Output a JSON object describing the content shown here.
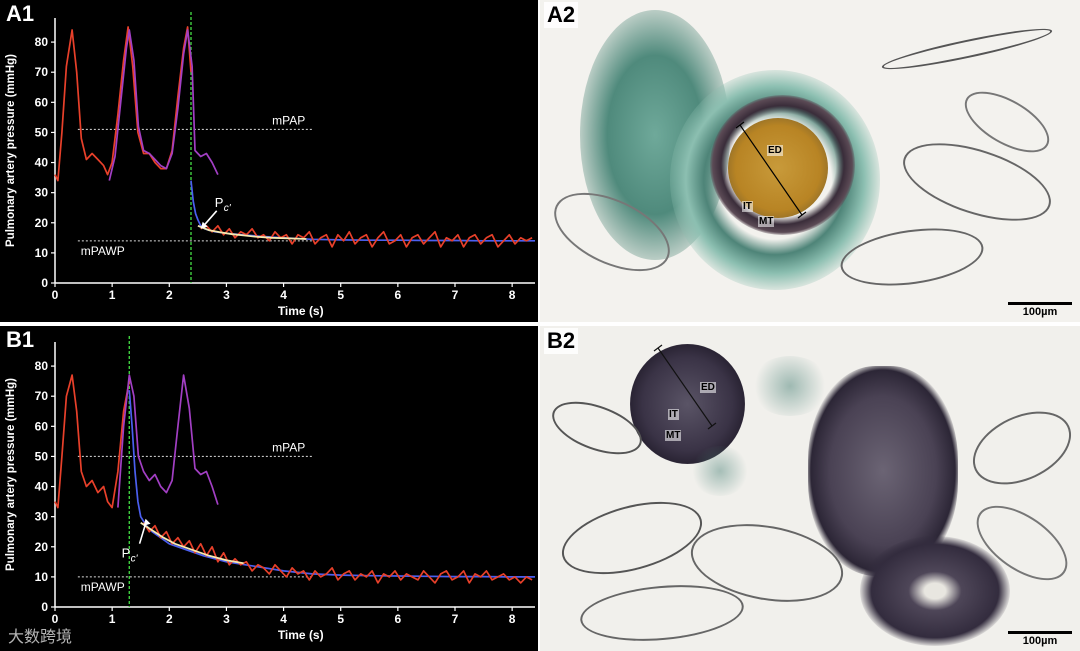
{
  "panels": {
    "a1": {
      "label": "A1"
    },
    "a2": {
      "label": "A2",
      "labels": [
        "ED",
        "IT",
        "MT"
      ],
      "scalebar": "100µm"
    },
    "b1": {
      "label": "B1"
    },
    "b2": {
      "label": "B2",
      "labels": [
        "ED",
        "IT",
        "MT"
      ],
      "scalebar": "100µm"
    }
  },
  "watermark": "大数跨境",
  "chart_data": [
    {
      "type": "line",
      "panel": "A1",
      "xlabel": "Time (s)",
      "ylabel": "Pulmonary artery pressure (mmHg)",
      "xlim": [
        0,
        8.4
      ],
      "ylim": [
        0,
        88
      ],
      "xticks": [
        0,
        1,
        2,
        3,
        4,
        5,
        6,
        7,
        8
      ],
      "yticks": [
        0,
        10,
        20,
        30,
        40,
        50,
        60,
        70,
        80
      ],
      "reference_lines": [
        {
          "name": "mPAP",
          "y": 51
        },
        {
          "name": "mPAWP",
          "y": 14
        }
      ],
      "occlusion_time": 2.38,
      "pc_label": "P",
      "pc_sub": "c'",
      "pc_point": {
        "x": 2.55,
        "y": 18
      },
      "series": [
        {
          "color": "#e8402a",
          "x": [
            0,
            0.05,
            0.12,
            0.2,
            0.3,
            0.38,
            0.46,
            0.55,
            0.65,
            0.75,
            0.85,
            0.92,
            1.0,
            1.1,
            1.2,
            1.28,
            1.36,
            1.45,
            1.55,
            1.65,
            1.75,
            1.85,
            1.95,
            2.05,
            2.15,
            2.25,
            2.32,
            2.38
          ],
          "y": [
            36,
            34,
            50,
            72,
            84,
            70,
            48,
            41,
            43,
            41,
            39,
            36,
            40,
            56,
            74,
            85,
            72,
            50,
            43,
            43,
            40,
            38,
            38,
            44,
            62,
            78,
            85,
            70
          ]
        },
        {
          "color": "#a23fc4",
          "x": [
            0.95,
            1.05,
            1.15,
            1.25,
            1.3,
            1.38,
            1.46,
            1.55,
            1.65,
            1.75,
            1.85,
            1.95,
            2.05,
            2.15,
            2.25,
            2.32,
            2.4,
            2.45,
            2.55,
            2.65,
            2.75,
            2.85
          ],
          "y": [
            34,
            42,
            60,
            78,
            84,
            74,
            52,
            44,
            43,
            41,
            39,
            38,
            43,
            58,
            76,
            84,
            72,
            44,
            42,
            43,
            40,
            36
          ]
        },
        {
          "color": "#4b5ff0",
          "x": [
            2.38,
            2.42,
            2.46,
            2.5,
            2.55,
            2.62,
            2.7,
            2.8,
            3.0,
            3.3,
            3.6,
            4.0,
            4.5,
            5.0,
            5.5,
            6.0,
            6.5,
            7.0,
            7.5,
            8.0,
            8.4
          ],
          "y": [
            34,
            27,
            23,
            21,
            19,
            18,
            17.5,
            17,
            16.5,
            16,
            15.5,
            15,
            14.5,
            14.3,
            14.2,
            14.2,
            14.1,
            14.1,
            14.0,
            14.0,
            14.0
          ]
        },
        {
          "color": "#e8402a",
          "x": [
            2.55,
            2.65,
            2.75,
            2.85,
            2.95,
            3.05,
            3.15,
            3.25,
            3.35,
            3.45,
            3.55,
            3.65,
            3.75,
            3.85,
            3.95,
            4.05,
            4.15,
            4.25,
            4.35,
            4.45,
            4.55,
            4.65,
            4.75,
            4.85,
            4.95,
            5.05,
            5.15,
            5.25,
            5.35,
            5.45,
            5.55,
            5.65,
            5.75,
            5.85,
            5.95,
            6.05,
            6.15,
            6.25,
            6.35,
            6.45,
            6.55,
            6.65,
            6.75,
            6.85,
            6.95,
            7.05,
            7.15,
            7.25,
            7.35,
            7.45,
            7.55,
            7.65,
            7.75,
            7.85,
            7.95,
            8.05,
            8.15,
            8.25,
            8.35
          ],
          "y": [
            18,
            19,
            17,
            19,
            16,
            18,
            15,
            17,
            16,
            18,
            15,
            16,
            14,
            17,
            15,
            16,
            13,
            16,
            15,
            17,
            13,
            15,
            16,
            12,
            16,
            14,
            17,
            13,
            15,
            16,
            12,
            15,
            17,
            13,
            14,
            16,
            12,
            15,
            16,
            13,
            15,
            17,
            12,
            15,
            14,
            16,
            12,
            15,
            16,
            13,
            15,
            16,
            12,
            14,
            16,
            13,
            15,
            14,
            15
          ]
        },
        {
          "color": "#f5e9b0",
          "x": [
            2.5,
            2.7,
            2.9,
            3.1,
            3.3,
            3.5,
            3.8,
            4.1,
            4.4
          ],
          "y": [
            19,
            17.5,
            16.8,
            16.2,
            15.8,
            15.4,
            15.0,
            14.8,
            14.6
          ]
        }
      ]
    },
    {
      "type": "line",
      "panel": "B1",
      "xlabel": "Time (s)",
      "ylabel": "Pulmonary artery pressure (mmHg)",
      "xlim": [
        0,
        8.4
      ],
      "ylim": [
        0,
        88
      ],
      "xticks": [
        0,
        1,
        2,
        3,
        4,
        5,
        6,
        7,
        8
      ],
      "yticks": [
        0,
        10,
        20,
        30,
        40,
        50,
        60,
        70,
        80
      ],
      "reference_lines": [
        {
          "name": "mPAP",
          "y": 50
        },
        {
          "name": "mPAWP",
          "y": 10
        }
      ],
      "occlusion_time": 1.3,
      "pc_label": "P",
      "pc_sub": "c'",
      "pc_point": {
        "x": 1.55,
        "y": 27
      },
      "series": [
        {
          "color": "#e8402a",
          "x": [
            0,
            0.05,
            0.12,
            0.2,
            0.3,
            0.38,
            0.46,
            0.55,
            0.65,
            0.75,
            0.85,
            0.92,
            1.0,
            1.1,
            1.2,
            1.3
          ],
          "y": [
            35,
            33,
            50,
            70,
            77,
            65,
            45,
            40,
            42,
            38,
            40,
            35,
            33,
            45,
            65,
            75
          ]
        },
        {
          "color": "#a23fc4",
          "x": [
            1.1,
            1.2,
            1.3,
            1.38,
            1.46,
            1.55,
            1.65,
            1.75,
            1.85,
            1.95,
            2.05,
            2.15,
            2.25,
            2.35,
            2.45,
            2.55,
            2.65,
            2.75,
            2.85
          ],
          "y": [
            33,
            60,
            77,
            70,
            50,
            45,
            42,
            44,
            40,
            38,
            42,
            60,
            77,
            66,
            46,
            44,
            45,
            40,
            34
          ]
        },
        {
          "color": "#4b5ff0",
          "x": [
            1.3,
            1.35,
            1.4,
            1.45,
            1.5,
            1.6,
            1.7,
            1.85,
            2.0,
            2.3,
            2.6,
            3.0,
            3.5,
            4.0,
            4.5,
            5.0,
            5.5,
            6.0,
            6.5,
            7.0,
            7.5,
            8.0,
            8.4
          ],
          "y": [
            72,
            60,
            45,
            35,
            30,
            27,
            25,
            23,
            21,
            19,
            17,
            15,
            13.5,
            12,
            11,
            10.6,
            10.4,
            10.3,
            10.2,
            10.1,
            10.1,
            10.0,
            10.0
          ]
        },
        {
          "color": "#e8402a",
          "x": [
            1.55,
            1.65,
            1.75,
            1.85,
            1.95,
            2.05,
            2.15,
            2.25,
            2.35,
            2.45,
            2.55,
            2.65,
            2.75,
            2.85,
            2.95,
            3.05,
            3.15,
            3.25,
            3.35,
            3.45,
            3.55,
            3.65,
            3.75,
            3.85,
            3.95,
            4.05,
            4.15,
            4.25,
            4.35,
            4.45,
            4.55,
            4.65,
            4.75,
            4.85,
            4.95,
            5.05,
            5.15,
            5.25,
            5.35,
            5.45,
            5.55,
            5.65,
            5.75,
            5.85,
            5.95,
            6.05,
            6.15,
            6.25,
            6.35,
            6.45,
            6.55,
            6.65,
            6.75,
            6.85,
            6.95,
            7.05,
            7.15,
            7.25,
            7.35,
            7.45,
            7.55,
            7.65,
            7.75,
            7.85,
            7.95,
            8.05,
            8.15,
            8.25,
            8.35
          ],
          "y": [
            28,
            25,
            27,
            23,
            25,
            21,
            23,
            20,
            22,
            18,
            21,
            17,
            20,
            15,
            18,
            14,
            16,
            14,
            15,
            12,
            14,
            13,
            11,
            14,
            12,
            10,
            13,
            11,
            12,
            9,
            12,
            10,
            11,
            13,
            9,
            11,
            12,
            9,
            11,
            10,
            12,
            8,
            11,
            10,
            12,
            9,
            11,
            10,
            9,
            12,
            10,
            8,
            11,
            12,
            9,
            10,
            12,
            8,
            11,
            10,
            12,
            9,
            10,
            11,
            9,
            10,
            8,
            10,
            9
          ]
        },
        {
          "color": "#f5e9b0",
          "x": [
            1.5,
            1.7,
            1.9,
            2.1,
            2.4,
            2.7,
            3.0,
            3.3
          ],
          "y": [
            28,
            25.5,
            23,
            21,
            19,
            17,
            15.5,
            14.5
          ]
        }
      ]
    }
  ]
}
